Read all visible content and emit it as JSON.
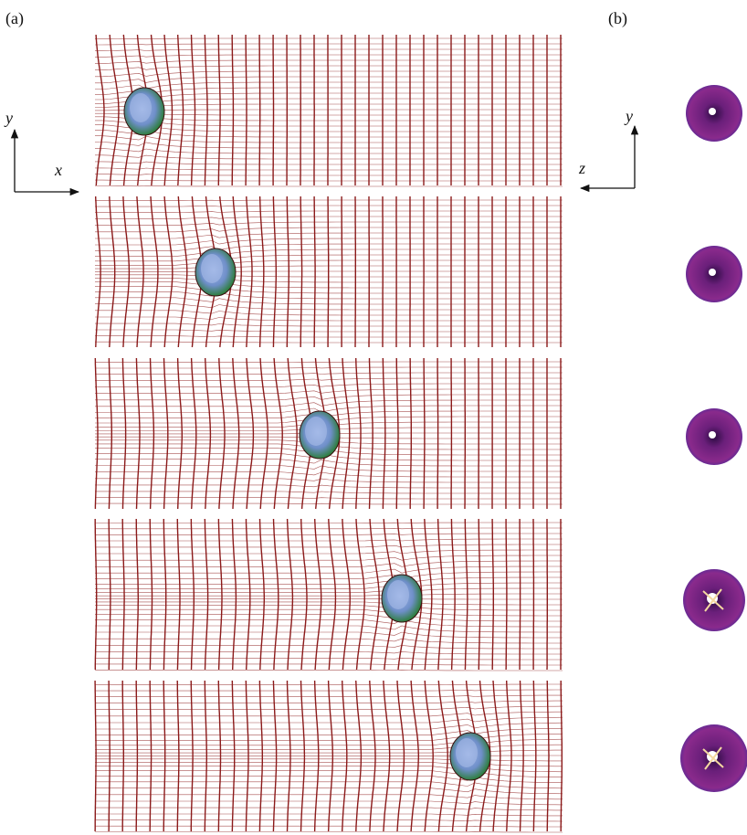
{
  "figure": {
    "panel_a_label": "(a)",
    "panel_b_label": "(b)",
    "left_axes": {
      "vertical": "y",
      "horizontal": "x"
    },
    "right_axes": {
      "vertical": "y",
      "horizontal": "z"
    }
  }
}
